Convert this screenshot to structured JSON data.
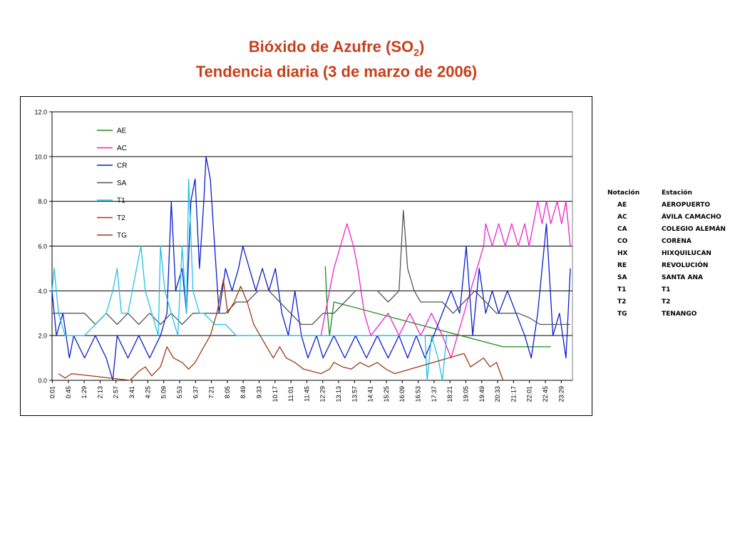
{
  "title": {
    "line1_pre": "Bióxido de Azufre (SO",
    "line1_sub": "2",
    "line1_post": ")",
    "line2": "Tendencia diaria (3 de marzo de 2006)"
  },
  "chart_data": {
    "type": "line",
    "ylim": [
      0,
      12
    ],
    "yticks": [
      "0.0",
      "2.0",
      "4.0",
      "6.0",
      "8.0",
      "10.0",
      "12.0"
    ],
    "xticks": [
      "0:01",
      "0:45",
      "1:29",
      "2:13",
      "2:57",
      "3:41",
      "4:25",
      "5:09",
      "5:53",
      "6:37",
      "7:21",
      "8:05",
      "8:49",
      "9:33",
      "10:17",
      "11:01",
      "11:45",
      "12:29",
      "13:13",
      "13:57",
      "14:41",
      "15:25",
      "16:09",
      "16:53",
      "17:37",
      "18:21",
      "19:05",
      "19:49",
      "20:33",
      "21:17",
      "22:01",
      "22:45",
      "23:29"
    ],
    "grid": true,
    "legend_position": "top-left",
    "series": [
      {
        "name": "AE",
        "color": "#1a8a1a",
        "points": [
          [
            12.6,
            5.1
          ],
          [
            12.7,
            3.0
          ],
          [
            12.8,
            2.0
          ],
          [
            13.0,
            3.5
          ],
          [
            20.8,
            1.5
          ],
          [
            23.0,
            1.5
          ]
        ]
      },
      {
        "name": "AC",
        "color": "#ee22cc",
        "points": [
          [
            12.4,
            2.0
          ],
          [
            12.8,
            4.0
          ],
          [
            13.0,
            5.0
          ],
          [
            13.3,
            6.0
          ],
          [
            13.6,
            7.0
          ],
          [
            13.9,
            6.0
          ],
          [
            14.1,
            5.0
          ],
          [
            14.4,
            3.0
          ],
          [
            14.7,
            2.0
          ],
          [
            15.5,
            3.0
          ],
          [
            16.0,
            2.0
          ],
          [
            16.5,
            3.0
          ],
          [
            17.0,
            2.0
          ],
          [
            17.5,
            3.0
          ],
          [
            18.0,
            2.0
          ],
          [
            18.4,
            1.0
          ],
          [
            19.0,
            3.0
          ],
          [
            19.3,
            4.0
          ],
          [
            19.6,
            5.0
          ],
          [
            19.9,
            6.0
          ],
          [
            20.0,
            7.0
          ],
          [
            20.3,
            6.0
          ],
          [
            20.6,
            7.0
          ],
          [
            20.9,
            6.0
          ],
          [
            21.2,
            7.0
          ],
          [
            21.5,
            6.0
          ],
          [
            21.8,
            7.0
          ],
          [
            22.0,
            6.0
          ],
          [
            22.2,
            7.0
          ],
          [
            22.4,
            8.0
          ],
          [
            22.6,
            7.0
          ],
          [
            22.8,
            8.0
          ],
          [
            23.0,
            7.0
          ],
          [
            23.3,
            8.0
          ],
          [
            23.5,
            7.0
          ],
          [
            23.7,
            8.0
          ],
          [
            23.9,
            6.0
          ]
        ]
      },
      {
        "name": "CR",
        "color": "#0a1ecc",
        "points": [
          [
            0.0,
            4.0
          ],
          [
            0.2,
            2.0
          ],
          [
            0.5,
            3.0
          ],
          [
            0.8,
            1.0
          ],
          [
            1.0,
            2.0
          ],
          [
            1.5,
            1.0
          ],
          [
            2.0,
            2.0
          ],
          [
            2.5,
            1.0
          ],
          [
            2.8,
            0.0
          ],
          [
            3.0,
            2.0
          ],
          [
            3.5,
            1.0
          ],
          [
            4.0,
            2.0
          ],
          [
            4.5,
            1.0
          ],
          [
            5.0,
            2.0
          ],
          [
            5.3,
            3.0
          ],
          [
            5.5,
            8.0
          ],
          [
            5.7,
            4.0
          ],
          [
            6.0,
            5.0
          ],
          [
            6.2,
            3.0
          ],
          [
            6.4,
            8.0
          ],
          [
            6.6,
            9.0
          ],
          [
            6.8,
            5.0
          ],
          [
            7.0,
            8.0
          ],
          [
            7.1,
            10.0
          ],
          [
            7.3,
            9.0
          ],
          [
            7.5,
            6.0
          ],
          [
            7.7,
            3.0
          ],
          [
            8.0,
            5.0
          ],
          [
            8.3,
            4.0
          ],
          [
            8.6,
            5.0
          ],
          [
            8.8,
            6.0
          ],
          [
            9.1,
            5.0
          ],
          [
            9.4,
            4.0
          ],
          [
            9.7,
            5.0
          ],
          [
            10.0,
            4.0
          ],
          [
            10.3,
            5.0
          ],
          [
            10.6,
            3.0
          ],
          [
            10.9,
            2.0
          ],
          [
            11.2,
            4.0
          ],
          [
            11.5,
            2.0
          ],
          [
            11.8,
            1.0
          ],
          [
            12.2,
            2.0
          ],
          [
            12.5,
            1.0
          ],
          [
            13.0,
            2.0
          ],
          [
            13.5,
            1.0
          ],
          [
            14.0,
            2.0
          ],
          [
            14.5,
            1.0
          ],
          [
            15.0,
            2.0
          ],
          [
            15.5,
            1.0
          ],
          [
            16.0,
            2.0
          ],
          [
            16.4,
            1.0
          ],
          [
            16.8,
            2.0
          ],
          [
            17.2,
            1.0
          ],
          [
            17.6,
            2.0
          ],
          [
            18.0,
            3.0
          ],
          [
            18.4,
            4.0
          ],
          [
            18.8,
            3.0
          ],
          [
            19.1,
            6.0
          ],
          [
            19.4,
            2.0
          ],
          [
            19.7,
            5.0
          ],
          [
            20.0,
            3.0
          ],
          [
            20.3,
            4.0
          ],
          [
            20.6,
            3.0
          ],
          [
            21.0,
            4.0
          ],
          [
            21.4,
            3.0
          ],
          [
            21.8,
            2.0
          ],
          [
            22.1,
            1.0
          ],
          [
            22.4,
            3.0
          ],
          [
            22.8,
            7.0
          ],
          [
            23.1,
            2.0
          ],
          [
            23.4,
            3.0
          ],
          [
            23.7,
            1.0
          ],
          [
            23.9,
            5.0
          ]
        ]
      },
      {
        "name": "SA",
        "color": "#555555",
        "points": [
          [
            0.0,
            3.0
          ],
          [
            0.5,
            3.0
          ],
          [
            1.0,
            3.0
          ],
          [
            1.5,
            3.0
          ],
          [
            2.0,
            2.5
          ],
          [
            2.5,
            3.0
          ],
          [
            3.0,
            2.5
          ],
          [
            3.5,
            3.0
          ],
          [
            4.0,
            2.5
          ],
          [
            4.5,
            3.0
          ],
          [
            5.0,
            2.5
          ],
          [
            5.5,
            3.0
          ],
          [
            6.0,
            2.5
          ],
          [
            6.5,
            3.0
          ],
          [
            7.0,
            3.0
          ],
          [
            7.5,
            3.0
          ],
          [
            8.0,
            3.0
          ],
          [
            8.5,
            3.5
          ],
          [
            9.0,
            3.5
          ],
          [
            9.5,
            4.0
          ],
          [
            10.0,
            4.0
          ],
          [
            10.5,
            3.5
          ],
          [
            11.0,
            3.0
          ],
          [
            11.5,
            2.5
          ],
          [
            12.0,
            2.5
          ],
          [
            12.5,
            3.0
          ],
          [
            13.0,
            3.0
          ],
          [
            13.5,
            3.5
          ],
          [
            14.0,
            4.0
          ],
          [
            14.5,
            4.0
          ],
          [
            15.0,
            4.0
          ],
          [
            15.5,
            3.5
          ],
          [
            16.0,
            4.0
          ],
          [
            16.2,
            7.6
          ],
          [
            16.4,
            5.0
          ],
          [
            16.7,
            4.0
          ],
          [
            17.0,
            3.5
          ],
          [
            17.5,
            3.5
          ],
          [
            18.0,
            3.5
          ],
          [
            18.5,
            3.0
          ],
          [
            19.0,
            3.5
          ],
          [
            19.5,
            4.0
          ],
          [
            20.0,
            3.5
          ],
          [
            20.5,
            3.0
          ],
          [
            21.0,
            3.0
          ],
          [
            21.5,
            3.0
          ],
          [
            22.0,
            2.8
          ],
          [
            22.5,
            2.5
          ],
          [
            23.0,
            2.5
          ],
          [
            23.5,
            2.5
          ],
          [
            23.9,
            2.5
          ]
        ]
      },
      {
        "name": "T1",
        "color": "#22c2e6",
        "points": [
          [
            0.0,
            4.0
          ],
          [
            0.1,
            5.0
          ],
          [
            0.3,
            3.0
          ],
          [
            0.6,
            2.0
          ],
          [
            1.0,
            2.0
          ],
          [
            1.5,
            2.0
          ],
          [
            2.0,
            2.5
          ],
          [
            2.5,
            3.0
          ],
          [
            2.8,
            4.0
          ],
          [
            3.0,
            5.0
          ],
          [
            3.2,
            3.0
          ],
          [
            3.5,
            3.0
          ],
          [
            3.9,
            5.0
          ],
          [
            4.1,
            6.0
          ],
          [
            4.3,
            4.0
          ],
          [
            4.6,
            3.0
          ],
          [
            4.9,
            2.0
          ],
          [
            5.0,
            6.0
          ],
          [
            5.2,
            4.0
          ],
          [
            5.5,
            3.0
          ],
          [
            5.8,
            2.0
          ],
          [
            6.0,
            6.0
          ],
          [
            6.2,
            3.0
          ],
          [
            6.3,
            9.0
          ],
          [
            6.5,
            4.0
          ],
          [
            6.8,
            3.0
          ],
          [
            7.0,
            3.0
          ],
          [
            7.5,
            2.5
          ],
          [
            8.0,
            2.5
          ],
          [
            8.5,
            2.0
          ],
          [
            9.0,
            2.0
          ],
          [
            9.5,
            2.0
          ],
          [
            10.0,
            2.0
          ],
          [
            10.5,
            2.0
          ],
          [
            11.0,
            2.0
          ],
          [
            17.2,
            2.0
          ],
          [
            17.3,
            0.0
          ],
          [
            17.5,
            2.0
          ],
          [
            17.8,
            1.0
          ],
          [
            18.0,
            0.0
          ],
          [
            18.2,
            2.0
          ]
        ]
      },
      {
        "name": "T2",
        "color": "#cc2222",
        "points": []
      },
      {
        "name": "TG",
        "color": "#9a3a12",
        "points": [
          [
            0.3,
            0.3
          ],
          [
            0.6,
            0.1
          ],
          [
            0.9,
            0.3
          ],
          [
            3.6,
            0.0
          ],
          [
            4.0,
            0.4
          ],
          [
            4.3,
            0.6
          ],
          [
            4.6,
            0.2
          ],
          [
            5.0,
            0.6
          ],
          [
            5.3,
            1.5
          ],
          [
            5.6,
            1.0
          ],
          [
            6.0,
            0.8
          ],
          [
            6.3,
            0.5
          ],
          [
            6.6,
            0.8
          ],
          [
            7.0,
            1.5
          ],
          [
            7.3,
            2.0
          ],
          [
            7.6,
            3.0
          ],
          [
            7.9,
            4.5
          ],
          [
            8.1,
            3.0
          ],
          [
            8.4,
            3.5
          ],
          [
            8.7,
            4.2
          ],
          [
            9.0,
            3.5
          ],
          [
            9.3,
            2.5
          ],
          [
            9.6,
            2.0
          ],
          [
            9.9,
            1.5
          ],
          [
            10.2,
            1.0
          ],
          [
            10.5,
            1.5
          ],
          [
            10.8,
            1.0
          ],
          [
            11.2,
            0.8
          ],
          [
            11.6,
            0.5
          ],
          [
            12.0,
            0.4
          ],
          [
            12.4,
            0.3
          ],
          [
            12.8,
            0.5
          ],
          [
            13.0,
            0.8
          ],
          [
            13.4,
            0.6
          ],
          [
            13.8,
            0.5
          ],
          [
            14.2,
            0.8
          ],
          [
            14.6,
            0.6
          ],
          [
            15.0,
            0.8
          ],
          [
            15.4,
            0.5
          ],
          [
            15.8,
            0.3
          ],
          [
            19.0,
            1.2
          ],
          [
            19.3,
            0.6
          ],
          [
            19.6,
            0.8
          ],
          [
            19.9,
            1.0
          ],
          [
            20.2,
            0.6
          ],
          [
            20.5,
            0.8
          ],
          [
            20.8,
            0.0
          ]
        ]
      }
    ]
  },
  "station_table": {
    "header_code": "Notación",
    "header_name": "Estación",
    "rows": [
      {
        "code": "AE",
        "name": "AEROPUERTO"
      },
      {
        "code": "AC",
        "name": "ÁVILA CAMACHO"
      },
      {
        "code": "CA",
        "name": "COLEGIO ALEMÁN"
      },
      {
        "code": "CO",
        "name": "CORENA"
      },
      {
        "code": "HX",
        "name": "HIXQUILUCAN"
      },
      {
        "code": "RE",
        "name": "REVOLUCIÓN"
      },
      {
        "code": "SA",
        "name": "SANTA ANA"
      },
      {
        "code": "T1",
        "name": "T1"
      },
      {
        "code": "T2",
        "name": "T2"
      },
      {
        "code": "TG",
        "name": "TENANGO"
      }
    ]
  }
}
